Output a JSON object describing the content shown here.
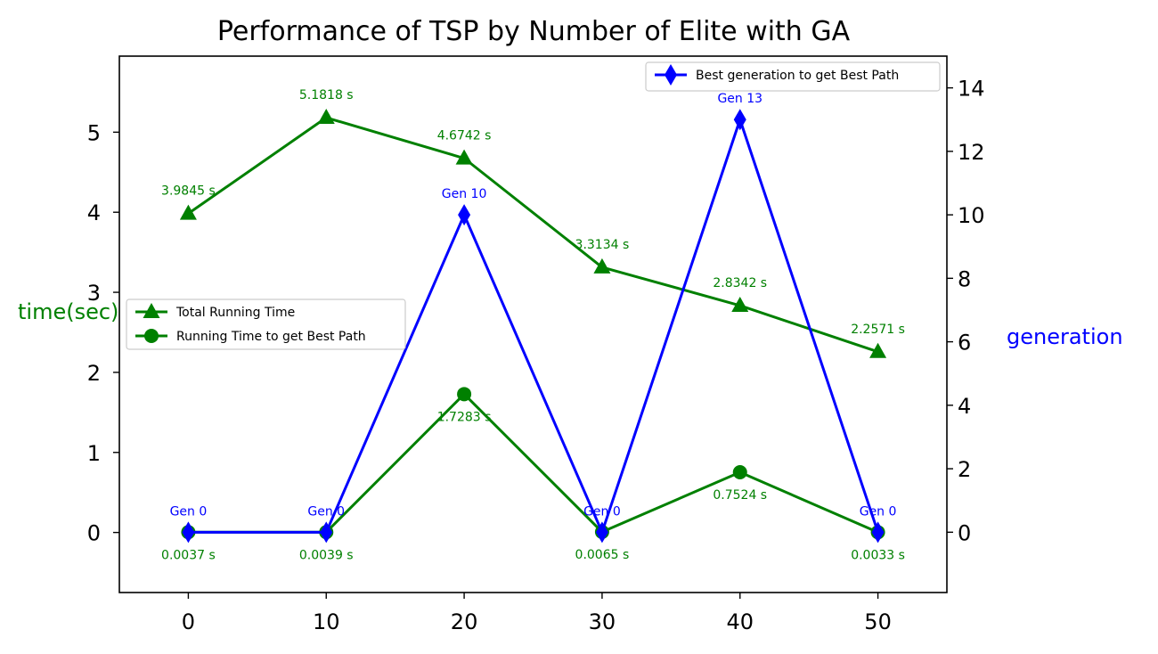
{
  "chart_data": {
    "type": "line",
    "title": "Performance of TSP by Number of Elite with GA",
    "x": [
      0,
      10,
      20,
      30,
      40,
      50
    ],
    "xlim": [
      -5,
      55
    ],
    "x_ticks": [
      "0",
      "10",
      "20",
      "30",
      "40",
      "50"
    ],
    "y_left": {
      "label": "time(sec)",
      "color": "#008000",
      "lim": [
        -0.75,
        5.95
      ],
      "ticks": [
        "0",
        "1",
        "2",
        "3",
        "4",
        "5"
      ]
    },
    "y_right": {
      "label": "generation",
      "color": "#0000ff",
      "lim": [
        -1.9,
        15.0
      ],
      "ticks": [
        "0",
        "2",
        "4",
        "6",
        "8",
        "10",
        "12",
        "14"
      ]
    },
    "series": [
      {
        "name": "Total Running Time",
        "axis": "left",
        "color": "#008000",
        "marker": "triangle",
        "values": [
          3.9845,
          5.1818,
          4.6742,
          3.3134,
          2.8342,
          2.2571
        ],
        "labels": [
          "3.9845 s",
          "5.1818 s",
          "4.6742 s",
          "3.3134 s",
          "2.8342 s",
          "2.2571 s"
        ]
      },
      {
        "name": "Running Time to get Best Path",
        "axis": "left",
        "color": "#008000",
        "marker": "circle",
        "values": [
          0.0037,
          0.0039,
          1.7283,
          0.0065,
          0.7524,
          0.0033
        ],
        "labels": [
          "0.0037 s",
          "0.0039 s",
          "1.7283 s",
          "0.0065 s",
          "0.7524 s",
          "0.0033 s"
        ]
      },
      {
        "name": "Best generation to get Best Path",
        "axis": "right",
        "color": "#0000ff",
        "marker": "diamond",
        "values": [
          0,
          0,
          10,
          0,
          13,
          0
        ],
        "labels": [
          "Gen 0",
          "Gen 0",
          "Gen 10",
          "Gen 0",
          "Gen 13",
          "Gen 0"
        ]
      }
    ],
    "legends": [
      {
        "placement": "center-left",
        "entries": [
          "Total Running Time",
          "Running Time to get Best Path"
        ]
      },
      {
        "placement": "top-right",
        "entries": [
          "Best generation to get Best Path"
        ]
      }
    ],
    "grid": false
  }
}
